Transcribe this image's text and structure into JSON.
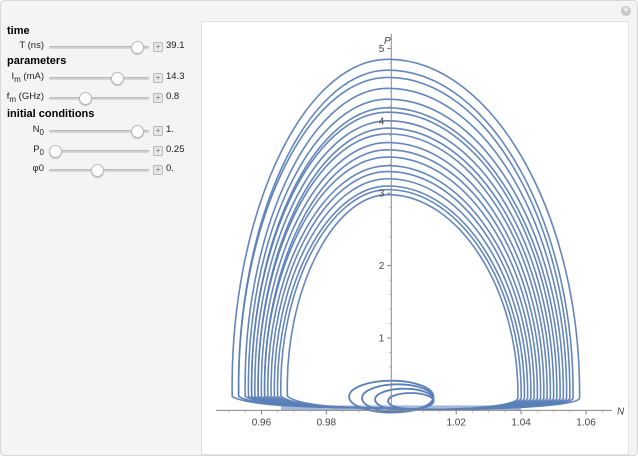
{
  "controls": {
    "time_heading": "time",
    "parameters_heading": "parameters",
    "initial_heading": "initial conditions",
    "sliders": [
      {
        "id": "T",
        "label_main": "T (ns)",
        "label_sub": "",
        "label_rest": "",
        "value_text": "39.1",
        "fraction": 0.88
      },
      {
        "id": "Im",
        "label_main": "I",
        "label_sub": "m",
        "label_rest": " (mA)",
        "value_text": "14.3",
        "fraction": 0.68
      },
      {
        "id": "fm",
        "label_main": "f",
        "label_sub": "m",
        "label_rest": " (GHz)",
        "value_text": "0.8",
        "fraction": 0.36
      },
      {
        "id": "N0",
        "label_main": "N",
        "label_sub": "0",
        "label_rest": "",
        "value_text": "1.",
        "fraction": 0.88
      },
      {
        "id": "P0",
        "label_main": "P",
        "label_sub": "0",
        "label_rest": "",
        "value_text": "0.25",
        "fraction": 0.06
      },
      {
        "id": "phi0",
        "label_main": "φ0",
        "label_sub": "",
        "label_rest": "",
        "value_text": "0.",
        "fraction": 0.48
      }
    ]
  },
  "chart_data": {
    "type": "line",
    "xlabel": "N",
    "ylabel": "P",
    "xlim": [
      0.946,
      1.068
    ],
    "ylim": [
      -0.05,
      5.2
    ],
    "x_ticks": [
      0.96,
      0.98,
      1.02,
      1.04,
      1.06
    ],
    "x_tick_labels": [
      "0.96",
      "0.98",
      "1.02",
      "1.04",
      "1.06"
    ],
    "y_ticks": [
      1,
      2,
      3,
      4,
      5
    ],
    "y_tick_labels": [
      "1",
      "2",
      "3",
      "4",
      "5"
    ],
    "grid": false,
    "series_color": "#5b7fb8",
    "loops": [
      {
        "peak": 4.85,
        "left": 0.951,
        "right": 1.058
      },
      {
        "peak": 4.7,
        "left": 0.953,
        "right": 1.056
      },
      {
        "peak": 4.6,
        "left": 0.953,
        "right": 1.055
      },
      {
        "peak": 4.45,
        "left": 0.955,
        "right": 1.054
      },
      {
        "peak": 4.3,
        "left": 0.956,
        "right": 1.053
      },
      {
        "peak": 4.18,
        "left": 0.957,
        "right": 1.052
      },
      {
        "peak": 4.12,
        "left": 0.957,
        "right": 1.051
      },
      {
        "peak": 4.0,
        "left": 0.958,
        "right": 1.05
      },
      {
        "peak": 3.9,
        "left": 0.959,
        "right": 1.049
      },
      {
        "peak": 3.82,
        "left": 0.959,
        "right": 1.048
      },
      {
        "peak": 3.7,
        "left": 0.96,
        "right": 1.047
      },
      {
        "peak": 3.6,
        "left": 0.961,
        "right": 1.046
      },
      {
        "peak": 3.5,
        "left": 0.961,
        "right": 1.045
      },
      {
        "peak": 3.38,
        "left": 0.962,
        "right": 1.044
      },
      {
        "peak": 3.3,
        "left": 0.963,
        "right": 1.043
      },
      {
        "peak": 3.2,
        "left": 0.964,
        "right": 1.042
      },
      {
        "peak": 3.1,
        "left": 0.965,
        "right": 1.041
      },
      {
        "peak": 3.05,
        "left": 0.966,
        "right": 1.04
      },
      {
        "peak": 2.98,
        "left": 0.968,
        "right": 1.039
      }
    ],
    "small_loops": [
      {
        "cx": 1.002,
        "cy": 0.17,
        "rx": 0.011,
        "ry": 0.19
      },
      {
        "cx": 1.004,
        "cy": 0.15,
        "rx": 0.009,
        "ry": 0.15
      },
      {
        "cx": 1.0,
        "cy": 0.19,
        "rx": 0.013,
        "ry": 0.22
      },
      {
        "cx": 1.006,
        "cy": 0.13,
        "rx": 0.007,
        "ry": 0.11
      }
    ]
  }
}
